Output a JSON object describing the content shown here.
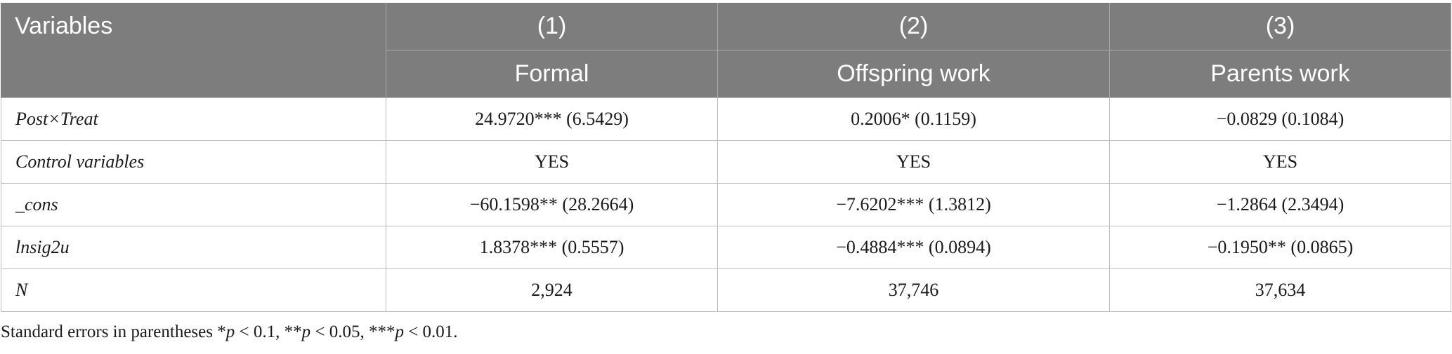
{
  "table": {
    "header": {
      "variables": "Variables",
      "numbers": [
        "(1)",
        "(2)",
        "(3)"
      ],
      "names": [
        "Formal",
        "Offspring work",
        "Parents work"
      ]
    },
    "rows": [
      {
        "label": "Post×Treat",
        "values": [
          "24.9720*** (6.5429)",
          "0.2006* (0.1159)",
          "−0.0829 (0.1084)"
        ]
      },
      {
        "label": "Control variables",
        "values": [
          "YES",
          "YES",
          "YES"
        ]
      },
      {
        "label": "_cons",
        "values": [
          "−60.1598** (28.2664)",
          "−7.6202*** (1.3812)",
          "−1.2864 (2.3494)"
        ]
      },
      {
        "label": "lnsig2u",
        "values": [
          "1.8378*** (0.5557)",
          "−0.4884*** (0.0894)",
          "−0.1950** (0.0865)"
        ]
      },
      {
        "label": "N",
        "values": [
          "2,924",
          "37,746",
          "37,634"
        ]
      }
    ]
  },
  "note": {
    "lead": "Standard errors in parentheses *",
    "p": "p",
    "t1": " < 0.1, **",
    "t2": " < 0.05, ***",
    "t3": " < 0.01."
  }
}
